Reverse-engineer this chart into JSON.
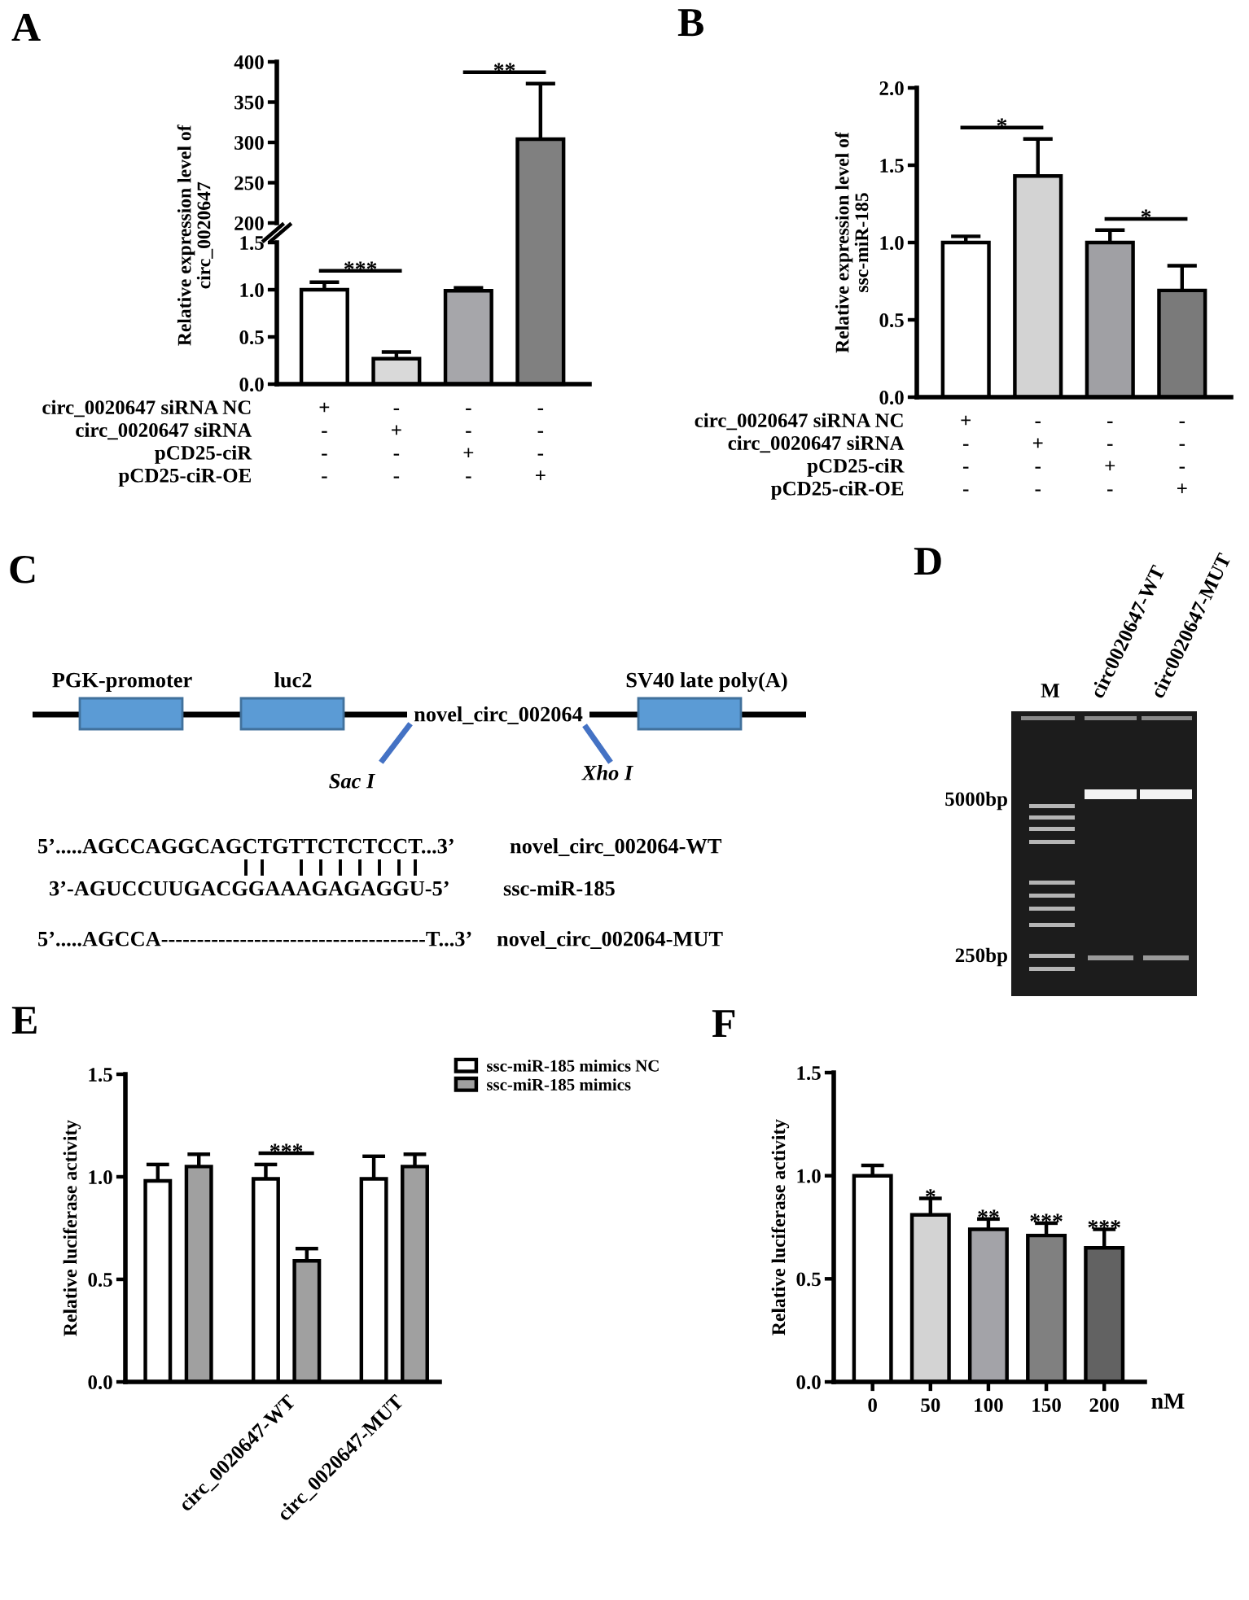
{
  "chart_data": [
    {
      "type": "bar",
      "title": "A",
      "categories": [
        null,
        null,
        null,
        null
      ],
      "values": [
        null,
        null,
        null,
        304
      ],
      "errors": [
        null,
        null,
        null,
        [
          304,
          373
        ]
      ],
      "colors": [
        "#ffffff",
        "#d9d9d9",
        "#a6a6aa",
        "#808080"
      ],
      "ylim": [
        200,
        400
      ],
      "yticks": [
        200,
        250,
        300,
        350,
        400
      ],
      "annotations": [
        "**"
      ]
    },
    {
      "type": "bar",
      "ylabel": "Relative expression level of\ncirc_0020647",
      "xlabel": "circ_0020647 siRNA NC\ncirc_0020647 siRNA\npCD25-ciR\npCD25-ciR-OE",
      "categories": [
        "+\n-\n-\n-",
        "-\n+\n-\n-",
        "-\n-\n+\n-",
        "-\n-\n-\n+"
      ],
      "values": [
        1.0,
        0.27,
        0.99,
        null
      ],
      "errors": [
        [
          1.0,
          1.08
        ],
        [
          0.27,
          0.34
        ],
        [
          0.99,
          1.02
        ],
        null
      ],
      "colors": [
        "#ffffff",
        "#d9d9d9",
        "#a6a6aa",
        "#808080"
      ],
      "ylim": [
        0,
        1.5
      ],
      "yticks": [
        {
          "value": 0,
          "label": "0.0"
        },
        0.5,
        {
          "value": 1,
          "label": "1.0"
        },
        1.5
      ],
      "annotations": [
        "***"
      ]
    },
    {
      "type": "bar",
      "title": "B",
      "ylabel": "Relative expression level of\nssc-miR-185",
      "xlabel": "circ_0020647 siRNA NC\ncirc_0020647 siRNA\npCD25-ciR\npCD25-ciR-OE",
      "categories": [
        "+\n-\n-\n-",
        "-\n+\n-\n-",
        "-\n-\n+\n-",
        "-\n-\n-\n+"
      ],
      "values": [
        1.0,
        1.43,
        1.0,
        0.69
      ],
      "errors": [
        [
          1.0,
          1.04
        ],
        [
          1.43,
          1.67
        ],
        [
          1.0,
          1.08
        ],
        [
          0.69,
          0.85
        ]
      ],
      "colors": [
        "#ffffff",
        "#d3d3d3",
        "#a0a0a4",
        "#7a7a7a"
      ],
      "ylim": [
        0,
        2
      ],
      "yticks": [
        {
          "value": 0,
          "label": "0.0"
        },
        0.5,
        {
          "value": 1,
          "label": "1.0"
        },
        1.5,
        {
          "value": 2,
          "label": "2.0"
        }
      ],
      "annotations": [
        "*",
        "*"
      ]
    },
    {
      "type": "other",
      "title": "C",
      "annotations": [
        "PGK-promoter",
        "luc2",
        "novel_circ_002064",
        "SV40 late poly(A)",
        "Sac I",
        "Xho I",
        "5’.....AGCCAGGCAGCTGTTCTCTCCT...3’",
        "novel_circ_002064-WT",
        "3’-AGUCCUUGACGGAAAGAGAGGU-5’",
        "ssc-miR-185",
        "5’.....AGCCA-------------------------------------T...3’",
        "novel_circ_002064-MUT"
      ]
    },
    {
      "type": "other",
      "title": "D",
      "annotations": [
        "M",
        "circ0020647-WT",
        "circ0020647-MUT",
        "5000bp",
        "250bp"
      ]
    },
    {
      "type": "bar",
      "title": "E",
      "ylabel": "Relative luciferase activity",
      "categories": [
        null,
        "circ_0020647-WT",
        "circ_0020647-MUT"
      ],
      "series": [
        {
          "name": "ssc-miR-185 mimics NC",
          "color": "#ffffff",
          "values": [
            0.98,
            0.99,
            0.99
          ],
          "errors": [
            [
              0.98,
              1.06
            ],
            [
              0.99,
              1.06
            ],
            [
              0.99,
              1.1
            ]
          ]
        },
        {
          "name": "ssc-miR-185 mimics",
          "color": "#a0a0a0",
          "values": [
            1.05,
            0.59,
            1.05
          ],
          "errors": [
            [
              1.05,
              1.11
            ],
            [
              0.59,
              0.65
            ],
            [
              1.05,
              1.11
            ]
          ]
        }
      ],
      "ylim": [
        0,
        1.5
      ],
      "yticks": [
        {
          "value": 0,
          "label": "0.0"
        },
        0.5,
        {
          "value": 1,
          "label": "1.0"
        },
        1.5
      ],
      "legend": "top right",
      "annotations": [
        "***"
      ]
    },
    {
      "type": "bar",
      "title": "F",
      "xlabel": "nM",
      "ylabel": "Relative luciferase activity",
      "categories": [
        "0",
        "50",
        "100",
        "150",
        "200"
      ],
      "values": [
        1.0,
        0.81,
        0.74,
        0.71,
        0.65
      ],
      "errors": [
        [
          1.0,
          1.05
        ],
        [
          0.81,
          0.89
        ],
        [
          0.74,
          0.79
        ],
        [
          0.71,
          0.77
        ],
        [
          0.65,
          0.74
        ]
      ],
      "colors": [
        "#ffffff",
        "#d3d3d3",
        "#a3a3a8",
        "#808080",
        "#626262"
      ],
      "ylim": [
        0,
        1.5
      ],
      "yticks": [
        {
          "value": 0,
          "label": "0.0"
        },
        0.5,
        {
          "value": 1,
          "label": "1.0"
        },
        1.5
      ],
      "annotations": [
        {
          "text": "*",
          "x": "50",
          "y": 0.89
        },
        {
          "text": "**",
          "x": "100",
          "y": 0.79
        },
        {
          "text": "***",
          "x": "150",
          "y": 0.77
        },
        {
          "text": "***",
          "x": "200",
          "y": 0.74
        }
      ]
    }
  ]
}
